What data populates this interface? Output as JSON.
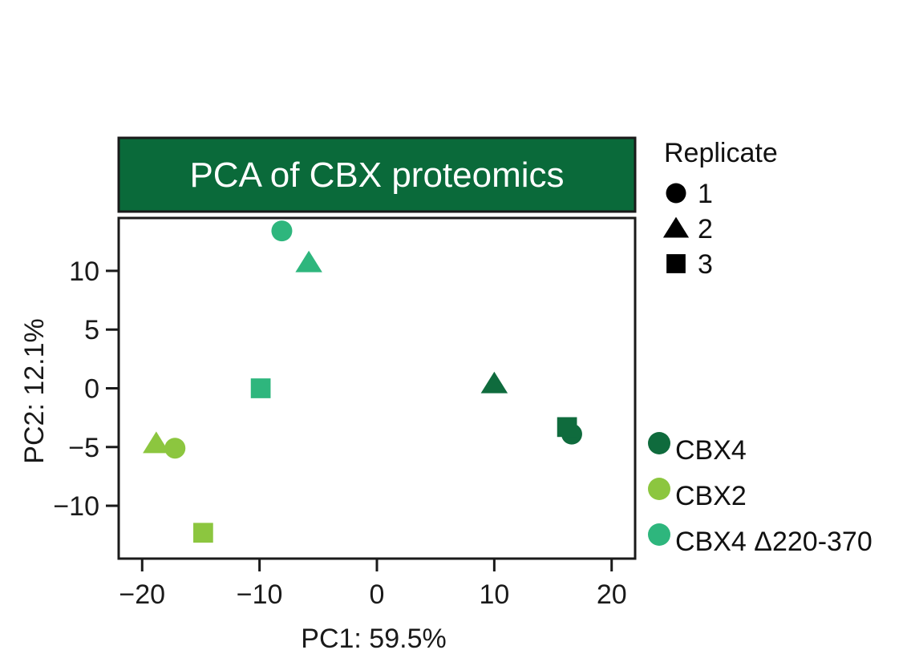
{
  "chart_data": {
    "type": "scatter",
    "title": "PCA of CBX proteomics",
    "xlabel": "PC1: 59.5%",
    "ylabel": "PC2: 12.1%",
    "xlim": [
      -22,
      22
    ],
    "ylim": [
      -14.5,
      14.5
    ],
    "xticks": [
      -20,
      -10,
      0,
      10,
      20
    ],
    "yticks": [
      -10,
      -5,
      0,
      5,
      10
    ],
    "xtick_labels": [
      "−20",
      "−10",
      "0",
      "10",
      "20"
    ],
    "ytick_labels": [
      "−10",
      "−5",
      "0",
      "5",
      "10"
    ],
    "grid": false,
    "series": [
      {
        "name": "CBX4",
        "color": "#0f6b3d",
        "points": [
          {
            "replicate": "1",
            "x": 16.6,
            "y": -3.9
          },
          {
            "replicate": "2",
            "x": 10.0,
            "y": 0.4
          },
          {
            "replicate": "3",
            "x": 16.2,
            "y": -3.3
          }
        ]
      },
      {
        "name": "CBX2",
        "color": "#8cc63f",
        "points": [
          {
            "replicate": "1",
            "x": -17.2,
            "y": -5.1
          },
          {
            "replicate": "2",
            "x": -18.8,
            "y": -4.7
          },
          {
            "replicate": "3",
            "x": -14.8,
            "y": -12.3
          }
        ]
      },
      {
        "name": "CBX4 Δ220-370",
        "color": "#2eb67d",
        "points": [
          {
            "replicate": "1",
            "x": -8.1,
            "y": 13.4
          },
          {
            "replicate": "2",
            "x": -5.8,
            "y": 10.7
          },
          {
            "replicate": "3",
            "x": -9.9,
            "y": 0.0
          }
        ]
      }
    ],
    "shape_legend": {
      "title": "Replicate",
      "items": [
        {
          "label": "1",
          "shape": "circle"
        },
        {
          "label": "2",
          "shape": "triangle"
        },
        {
          "label": "3",
          "shape": "square"
        }
      ]
    },
    "color_legend_placement": "right-bottom",
    "shape_legend_placement": "top-right"
  },
  "colors": {
    "title_bg": "#0a6a3a",
    "title_text": "#ffffff",
    "axis": "#1a1a1a"
  }
}
